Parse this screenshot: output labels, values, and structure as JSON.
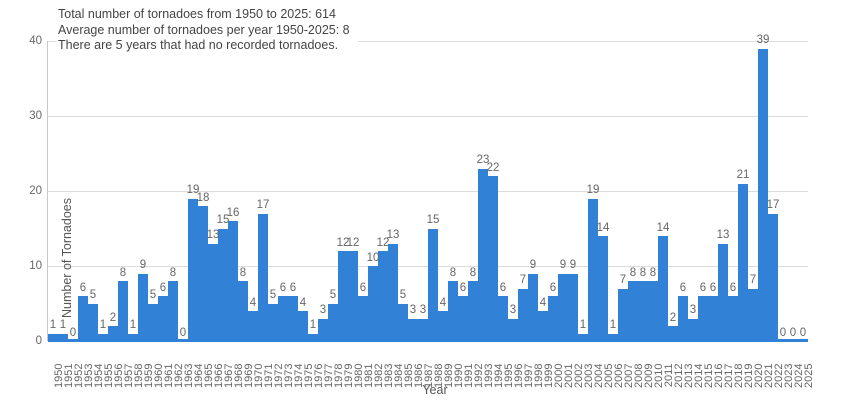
{
  "chart_data": {
    "type": "bar",
    "title": "",
    "xlabel": "Year",
    "ylabel": "Number of Tornadoes",
    "ylim": [
      0,
      40
    ],
    "yticks": [
      0,
      10,
      20,
      30,
      40
    ],
    "grid": true,
    "legend": false,
    "bar_color": "#3181d6",
    "grid_color": "#dcdcdc",
    "axis_color": "#c8c8c8",
    "tick_text_color": "#666666",
    "annotation_text_color": "#444444",
    "categories": [
      "1950",
      "1951",
      "1952",
      "1953",
      "1954",
      "1955",
      "1956",
      "1957",
      "1958",
      "1959",
      "1960",
      "1961",
      "1962",
      "1963",
      "1964",
      "1965",
      "1966",
      "1967",
      "1968",
      "1969",
      "1970",
      "1971",
      "1972",
      "1973",
      "1974",
      "1975",
      "1976",
      "1977",
      "1978",
      "1979",
      "1980",
      "1981",
      "1982",
      "1983",
      "1984",
      "1985",
      "1986",
      "1987",
      "1988",
      "1989",
      "1990",
      "1991",
      "1992",
      "1993",
      "1994",
      "1995",
      "1996",
      "1997",
      "1998",
      "1999",
      "2000",
      "2001",
      "2002",
      "2003",
      "2004",
      "2005",
      "2006",
      "2007",
      "2008",
      "2009",
      "2010",
      "2011",
      "2012",
      "2013",
      "2014",
      "2015",
      "2016",
      "2017",
      "2018",
      "2019",
      "2020",
      "2021",
      "2022",
      "2023",
      "2024",
      "2025"
    ],
    "values": [
      1,
      1,
      0,
      6,
      5,
      1,
      2,
      8,
      1,
      9,
      5,
      6,
      8,
      0,
      19,
      18,
      13,
      15,
      16,
      8,
      4,
      17,
      5,
      6,
      6,
      4,
      1,
      3,
      5,
      12,
      12,
      6,
      10,
      12,
      13,
      5,
      3,
      3,
      15,
      4,
      8,
      6,
      8,
      23,
      22,
      6,
      3,
      7,
      9,
      4,
      6,
      9,
      9,
      1,
      19,
      14,
      1,
      7,
      8,
      8,
      8,
      14,
      2,
      6,
      3,
      6,
      6,
      13,
      6,
      21,
      7,
      39,
      17,
      0,
      0,
      0
    ],
    "annotations": [
      "Total number of tornadoes from 1950 to 2025: 614",
      "Average number of tornadoes per year 1950-2025: 8",
      "There are 5 years that had no recorded tornadoes."
    ]
  }
}
